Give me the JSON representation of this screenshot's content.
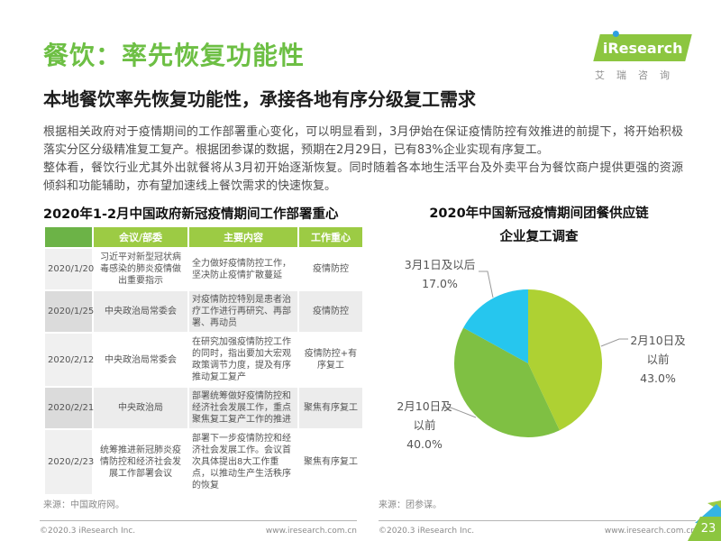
{
  "page": {
    "title": "餐饮：率先恢复功能性",
    "subtitle": "本地餐饮率先恢复功能性，承接各地有序分级复工需求",
    "paragraphs": [
      "根据相关政府对于疫情期间的工作部署重心变化，可以明显看到，3月伊始在保证疫情防控有效推进的前提下，将开始积极落实分区分级精准复工复产。根据团参谋的数据，预期在2月29日，已有83%企业实现有序复工。",
      "整体看，餐饮行业尤其外出就餐将从3月初开始逐渐恢复。同时随着各本地生活平台及外卖平台为餐饮商户提供更强的资源倾斜和功能辅助，亦有望加速线上餐饮需求的快速恢复。"
    ]
  },
  "logo": {
    "brand": "iResearch",
    "tagline": "艾瑞咨询"
  },
  "table_section": {
    "title": "2020年1-2月中国政府新冠疫情期间工作部署重心",
    "headers": {
      "col1": "",
      "col2": "会议/部委",
      "col3": "主要内容",
      "col4": "工作重心"
    },
    "rows": [
      {
        "date": "2020/1/20",
        "meeting": "习近平对新型冠状病毒感染的肺炎疫情做出重要指示",
        "content": "全力做好疫情防控工作，坚决防止疫情扩散蔓延",
        "focus": "疫情防控"
      },
      {
        "date": "2020/1/25",
        "meeting": "中央政治局常委会",
        "content": "对疫情防控特别是患者治疗工作进行再研究、再部署、再动员",
        "focus": "疫情防控"
      },
      {
        "date": "2020/2/12",
        "meeting": "中央政治局常委会",
        "content": "在研究加强疫情防控工作的同时，指出要加大宏观政策调节力度，提及有序推动复工复产",
        "focus": "疫情防控+有序复工"
      },
      {
        "date": "2020/2/21",
        "meeting": "中央政治局",
        "content": "部署统筹做好疫情防控和经济社会发展工作，重点聚焦复工复产工作的推进",
        "focus": "聚焦有序复工"
      },
      {
        "date": "2020/2/23",
        "meeting": "统筹推进新冠肺炎疫情防控和经济社会发展工作部署会议",
        "content": "部署下一步疫情防控和经济社会发展工作。会议首次具体提出8大工作重点，以推动生产生活秩序的恢复",
        "focus": "聚焦有序复工"
      }
    ],
    "source": "来源：中国政府网。"
  },
  "chart_data": {
    "type": "pie",
    "title": "2020年中国新冠疫情期间团餐供应链企业复工调查",
    "title_lines": [
      "2020年中国新冠疫情期间团餐供应链",
      "企业复工调查"
    ],
    "start_angle": "top",
    "direction": "clockwise",
    "slices": [
      {
        "label": "2月10日及以前",
        "value": 43.0,
        "display": "43.0%",
        "color": "#aed133"
      },
      {
        "label": "2月10日及以前",
        "value": 40.0,
        "display": "40.0%",
        "color": "#7fc043"
      },
      {
        "label": "3月1日及以后",
        "value": 17.0,
        "display": "17.0%",
        "color": "#26c6ee"
      }
    ],
    "source": "来源：团参谋。"
  },
  "footer": {
    "left": {
      "copyright": "©2020.3 iResearch Inc.",
      "site": "www.iresearch.com.cn"
    },
    "right": {
      "copyright": "©2020.3 iResearch Inc.",
      "site": "www.iresearch.com.cn"
    },
    "page_number": "23"
  },
  "colors": {
    "accent_green": "#6dbf44",
    "table_header_dark": "#6cb347",
    "table_header_light": "#9ccb44",
    "logo_green": "#8cc640",
    "corner_blue": "#35b4e4"
  }
}
